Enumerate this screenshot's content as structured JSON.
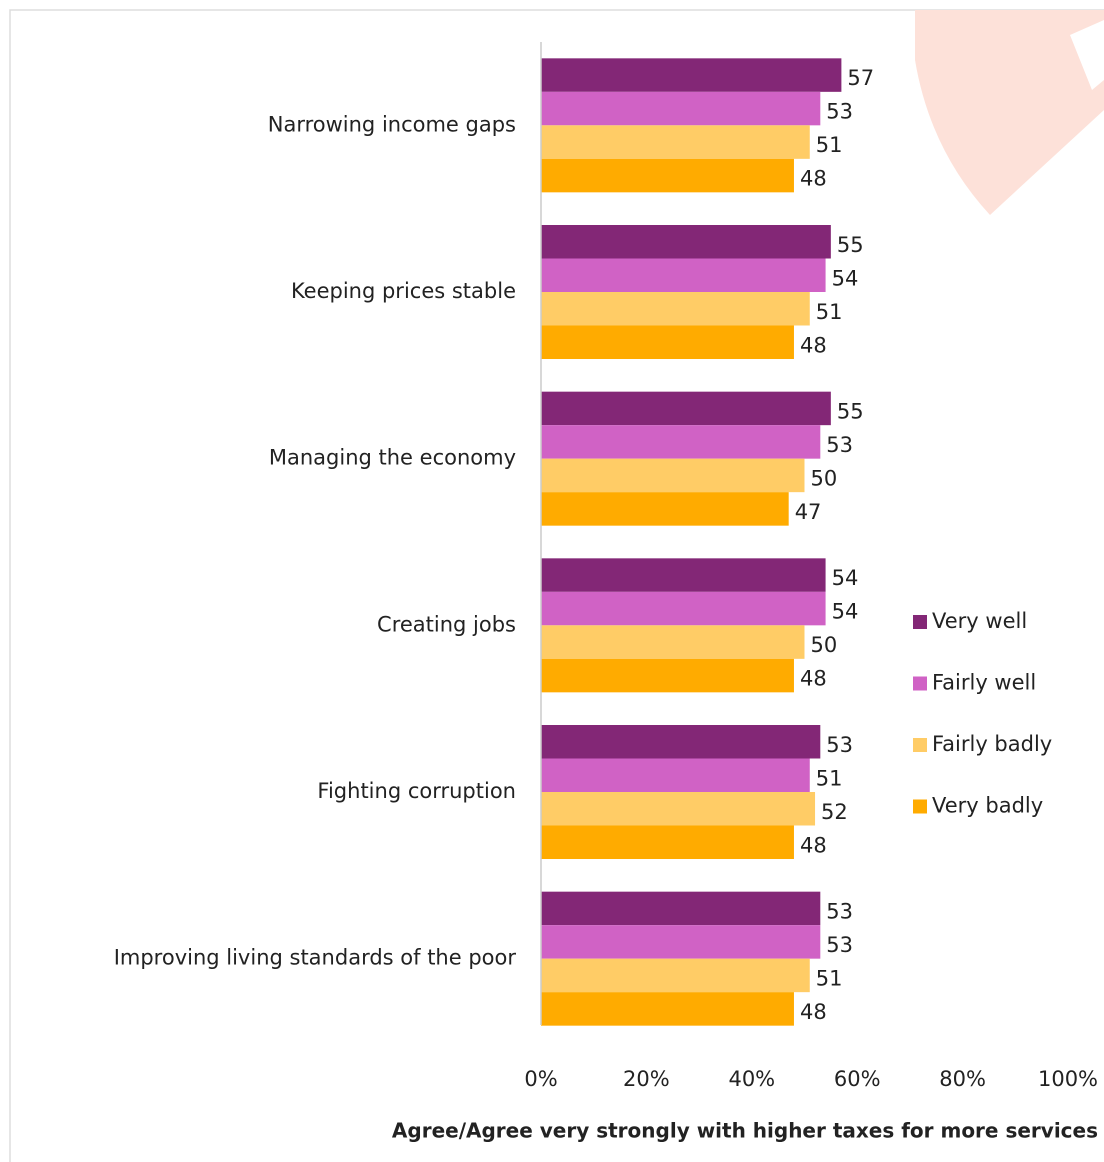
{
  "chart_data": {
    "type": "bar",
    "orientation": "horizontal",
    "x_label": "Agree/Agree very strongly with higher taxes for more services",
    "categories": [
      "Narrowing income gaps",
      "Keeping prices stable",
      "Managing the economy",
      "Creating jobs",
      "Fighting corruption",
      "Improving living standards of the poor"
    ],
    "series": [
      {
        "name": "Very well",
        "color": "#832776",
        "values": [
          57,
          55,
          55,
          54,
          53,
          53
        ]
      },
      {
        "name": "Fairly well",
        "color": "#d062c5",
        "values": [
          53,
          54,
          53,
          54,
          51,
          53
        ]
      },
      {
        "name": "Fairly badly",
        "color": "#ffcc66",
        "values": [
          51,
          51,
          50,
          50,
          52,
          51
        ]
      },
      {
        "name": "Very badly",
        "color": "#ffab00",
        "values": [
          48,
          48,
          47,
          48,
          48,
          48
        ]
      }
    ],
    "xlim": [
      0,
      100
    ],
    "xticks": [
      {
        "value": 0,
        "label": "0%"
      },
      {
        "value": 20,
        "label": "20%"
      },
      {
        "value": 40,
        "label": "40%"
      },
      {
        "value": 60,
        "label": "60%"
      },
      {
        "value": 80,
        "label": "80%"
      },
      {
        "value": 100,
        "label": "100%"
      }
    ],
    "grid": false,
    "legend": "right"
  }
}
